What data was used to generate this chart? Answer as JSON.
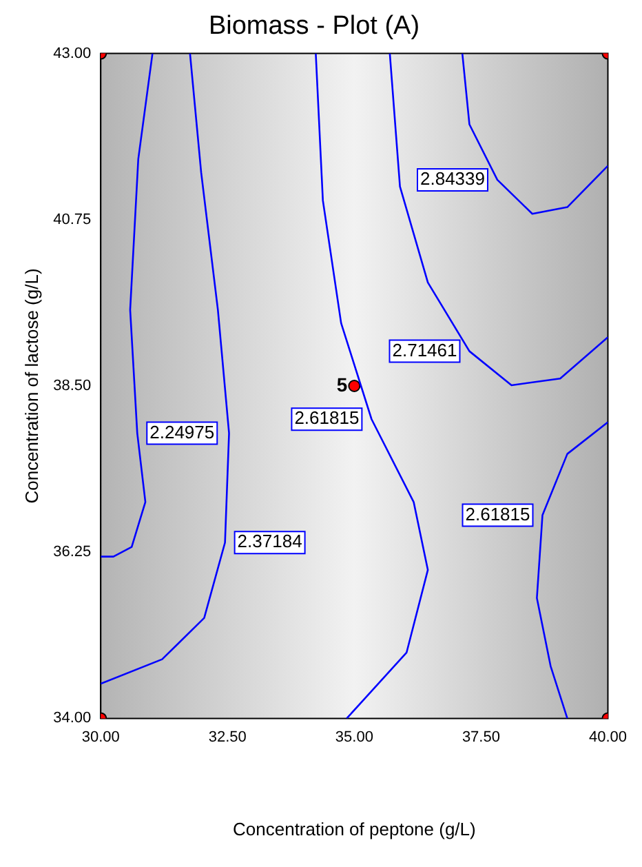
{
  "chart_data": {
    "type": "line",
    "title": "Biomass - Plot (A)",
    "xlabel": "Concentration of peptone (g/L)",
    "ylabel": "Concentration of lactose (g/L)",
    "xlim": [
      30,
      40
    ],
    "ylim": [
      34,
      43
    ],
    "xticks": [
      {
        "value": 30,
        "label": "30.00"
      },
      {
        "value": 32.5,
        "label": "32.50"
      },
      {
        "value": 35,
        "label": "35.00"
      },
      {
        "value": 37.5,
        "label": "37.50"
      },
      {
        "value": 40,
        "label": "40.00"
      }
    ],
    "yticks": [
      {
        "value": 34,
        "label": "34.00"
      },
      {
        "value": 36.25,
        "label": "36.25"
      },
      {
        "value": 38.5,
        "label": "38.50"
      },
      {
        "value": 40.75,
        "label": "40.75"
      },
      {
        "value": 43,
        "label": "43.00"
      }
    ],
    "grid": false,
    "legend": false,
    "line_style": "solid",
    "series": [
      {
        "name": "2.24975",
        "color": "#0000ff",
        "x": [
          31.02,
          30.74,
          30.58,
          30.72,
          30.88,
          30.61,
          30.25,
          30.0
        ],
        "values": [
          43,
          41.57,
          39.53,
          37.86,
          36.93,
          36.32,
          36.19,
          36.19
        ]
      },
      {
        "name": "2.37184",
        "color": "#0000ff",
        "x": [
          30,
          31.21,
          32.04,
          32.45,
          32.53,
          32.31,
          31.98,
          31.76
        ],
        "values": [
          34.47,
          34.8,
          35.36,
          36.38,
          37.86,
          39.53,
          41.39,
          43
        ]
      },
      {
        "name": "2.61815",
        "color": "#0000ff",
        "x": [
          34.24,
          34.38,
          34.74,
          35.34,
          36.17,
          36.45,
          36.03,
          34.85
        ],
        "values": [
          43,
          41.01,
          39.35,
          38.05,
          36.93,
          36.01,
          34.89,
          34
        ]
      },
      {
        "name": "2.71461",
        "color": "#0000ff",
        "x": [
          35.7,
          35.9,
          36.45,
          37.27,
          38.1,
          39.06,
          40
        ],
        "values": [
          43,
          41.2,
          39.9,
          38.97,
          38.51,
          38.6,
          39.16
        ]
      },
      {
        "name": "2.84339",
        "color": "#0000ff",
        "x": [
          37.13,
          37.27,
          37.82,
          38.51,
          39.2,
          40
        ],
        "values": [
          43,
          42.04,
          41.29,
          40.83,
          40.92,
          41.48
        ]
      },
      {
        "name": "2.61815",
        "color": "#0000ff",
        "x": [
          40,
          39.2,
          38.71,
          38.6,
          38.87,
          39.2
        ],
        "values": [
          38.01,
          37.58,
          36.75,
          35.63,
          34.71,
          34
        ]
      },
      {
        "type": "scatter",
        "marker": "circle",
        "color": "#ff0000",
        "x": [
          30,
          30,
          40,
          40,
          35
        ],
        "values": [
          34,
          43,
          34,
          43,
          38.5
        ]
      }
    ],
    "annotations": [
      {
        "text": "5",
        "x": 35,
        "y": 38.5
      }
    ]
  }
}
